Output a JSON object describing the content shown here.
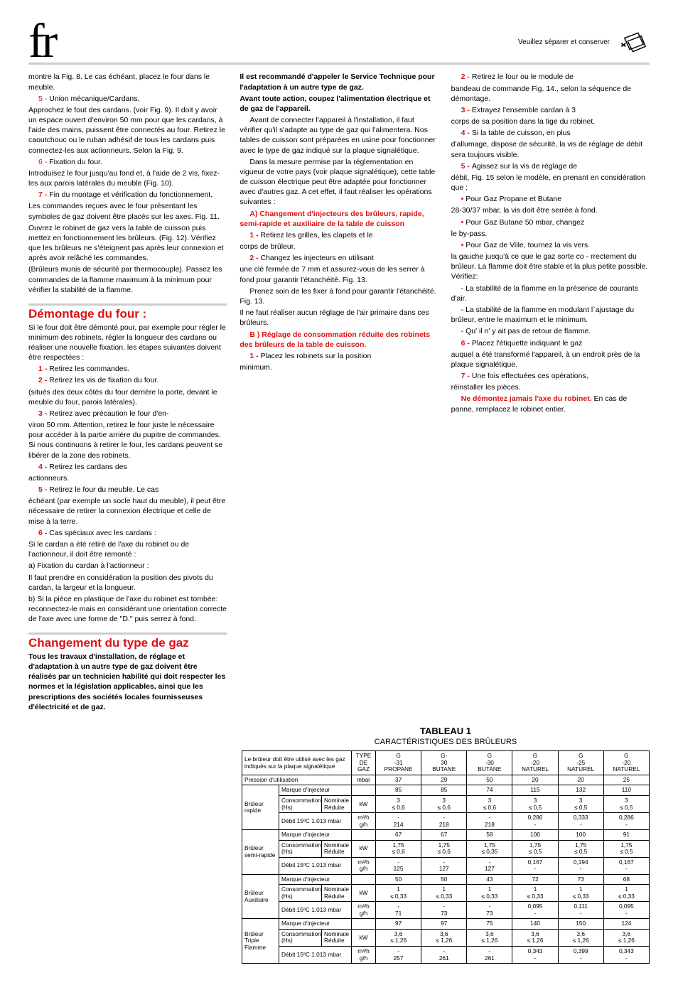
{
  "header": {
    "lang": "fr",
    "note": "Veuillez séparer et conserver"
  },
  "col1": {
    "p1": "montre la Fig. 8. Le cas échéant, placez le four dans le meuble.",
    "s5n": "5 - ",
    "s5": "Union mécanique/Cardans.",
    "p2": "Approchez le fout des cardans. (voir Fig. 9). Il doit y avoir un espace ouvert d'environ 50 mm pour que les cardans, à l'aide des mains, puissent être connectés au four. Retirez le caoutchouc ou le ruban adhésif de tous les cardans puis connectez-les aux actionneurs. Selon la Fig. 9.",
    "s6n": "6 - ",
    "s6": "Fixation du four.",
    "p3": "Introduisez le four jusqu'au fond et, à l'aide de 2 vis, fixez-les aux parois latérales du meuble (Fig. 10).",
    "s7n": "7 - ",
    "s7": "Fin du montage et vérification du fonctionnement.",
    "p4": "Les commandes reçues avec le four présentant les symboles de gaz doivent être placés sur les axes. Fig. 11.",
    "p5": "Ouvrez le robinet de gaz vers la table de cuisson puis mettez en fonctionnement les brûleurs. (Fig. 12). Vérifiez que les brûleurs ne s'éteignent pas après leur connexion et après avoir relâché les commandes.",
    "p6": "(Brûleurs munis de sécurité par thermocouple). Passez les commandes de la flamme maximum à la minimum pour vérifier la stabilité de la flamme.",
    "h_demontage": "Démontage du four :",
    "d_intro": "Si le four doit être démonté pour, par exemple pour régler le minimum des robinets, régler la longueur des cardans ou réaliser une nouvelle fixation, les étapes suivantes doivent être respectées :",
    "d1n": "1 - ",
    "d1": "Retirez les commandes.",
    "d2n": "2 - ",
    "d2": "Retirez les vis de fixation du four.",
    "d2b": "(situés des deux côtés du four derrière la porte, devant le meuble du four, parois latérales).",
    "d3n": "3 - ",
    "d3": "Retirez avec précaution le four d'en-",
    "d3b": "viron 50 mm. Attention, retirez le four juste le nécessaire pour accéder à la partie arrière du pupitre de commandes. Si nous continuons à retirer le four, les cardans peuvent se libérer de la zone des robinets.",
    "d4n": "4 - ",
    "d4": "Retirez les cardans des",
    "d4b": "actionneurs.",
    "d5n": "5 - ",
    "d5": "Retirez le four du meuble. Le cas",
    "d5b": "échéant (par exemple un socle haut du meuble), il peut être nécessaire de retirer la connexion électrique et celle de mise à la terre.",
    "d6n": "6 - ",
    "d6": "Cas spéciaux avec les cardans :",
    "d6a": "Si le cardan a été retiré de l'axe du robinet ou de l'actionneur, il doit être remonté :",
    "d6a1": "a) Fixation du cardan à l'actionneur :",
    "d6a1b": "Il faut prendre en considération la position des pivots du cardan, la largeur et la longueur.",
    "d6b": "b) Si la pièce en plastique de l'axe du robinet est tombée: reconnectez-le mais en considérant une orientation correcte de l'axe avec une forme de \"D.\" puis serrez à fond.",
    "h_changement": "Changement du type de gaz",
    "ch_intro": "Tous les travaux d'installation, de réglage et d'adaptation à un autre type de gaz doivent être réalisés par un technicien habilité qui doit respecter les normes et la législation applicables, ainsi que les prescriptions des sociétés locales fournisseuses d'électricité et de gaz."
  },
  "col2": {
    "rec1": "Il est recommandé d'appeler le Service Technique pour l'adaptation à un autre type de gaz.",
    "rec2": "Avant toute action, coupez l'alimentation électrique et de gaz de l'appareil.",
    "p1": "Avant de connecter l'appareil à l'installation, il faut vérifier qu'il s'adapte au type de gaz qui l'alimentera. Nos tables de cuisson sont préparées en usine pour fonctionner avec le type de gaz indiqué sur la plaque signalétique.",
    "p2": "Dans la mesure permise par la réglementation en vigueur de votre pays (voir plaque signalétique), cette table de cuisson électrique peut être adaptée pour fonctionner avec d'autres gaz. A cet effet, il faut réaliser les opérations suivantes :",
    "A": "A) Changement d'injecteurs des brûleurs, rapide, semi-rapide et auxiliaire de la table de cuisson",
    "a1n": "1 - ",
    "a1": "Retirez les grilles, les clapets et le",
    "a1b": "corps de brûleur.",
    "a2n": "2 - ",
    "a2": "Changez les injecteurs en utilisant",
    "a2b": "une clé fermée de 7 mm et assurez-vous de les serrer à fond pour garantir l'étanchéité. Fig. 13.",
    "a3": "Prenez soin de les fixer à fond pour garantir l'étanchéité. Fig. 13.",
    "a4": "Il ne faut réaliser aucun réglage de l'air primaire dans ces brûleurs.",
    "B": "B ) Réglage de consommation réduite des robinets des brûleurs de la table de cuisson.",
    "b1n": "1 - ",
    "b1": "Placez les robinets sur la position",
    "b1b": "minimum."
  },
  "col3": {
    "c2n": "2 - ",
    "c2": "Retirez le four ou le module de",
    "c2b": "bandeau de commande Fig. 14., selon la séquence de démontage.",
    "c3n": "3 - ",
    "c3": "Extrayez l'ensemble cardan à 3",
    "c3b": "corps de sa position dans la tige du robinet.",
    "c4n": "4 - ",
    "c4": "Si la table de cuisson, en plus",
    "c4b": "d'allumage, dispose de sécurité, la vis de réglage de débit sera toujours visible.",
    "c5n": "5 - ",
    "c5": "Agissez sur la vis de réglage de",
    "c5b": "débit, Fig. 15 selon le modèle, en prenant en considération que :",
    "bul1n": "• ",
    "bul1": "Pour Gaz Propane et Butane",
    "bul1b": "28-30/37 mbar, la vis doit être serrée à fond.",
    "bul2n": "• ",
    "bul2": "Pour Gaz Butane 50 mbar, changez",
    "bul2b": "le by-pass.",
    "bul3n": "• ",
    "bul3": "Pour Gaz de Ville, tournez la vis vers",
    "bul3b": "la gauche jusqu'à ce que le gaz sorte co - rrectement du brûleur. La flamme doit être stable et la plus petite possible. Vérifiez:",
    "chk1": "- La stabilité de la flamme en la présence de courants d'air.",
    "chk2": "- La stabilité de la flamme en modulant l`ajustage du brûleur, entre le maximum et le minimum.",
    "chk3": "- Qu' il n' y ait pas de retour de flamme.",
    "c6n": "6 - ",
    "c6": "Placez l'étiquette indiquant le gaz",
    "c6b": "auquel a été transformé l'appareil, à un endroit près de la plaque signalétique.",
    "c7n": "7 - ",
    "c7": "Une fois effectuées ces opérations,",
    "c7b": "réinstaller les pièces.",
    "warn": "Ne démontez jamais l'axe du robinet.",
    "warnb": " En cas de panne, remplacez le robinet entier."
  },
  "table": {
    "title": "TABLEAU 1",
    "subtitle": "CARACTÉRISTIQUES DES BRÛLEURS",
    "head_note": "Le brûleur doit être utilisé avec les gaz indiqués sur la plaque signalétique",
    "cols": [
      "TYPE DE GAZ",
      "G -31 PROPANE",
      "G- 30 BUTANE",
      "G -30 BUTANE",
      "G -20 NATUREL",
      "G -25 NATUREL",
      "G -20 NATUREL"
    ],
    "pression_label": "Pression d'utilisation",
    "pression_unit": "mbar",
    "pression": [
      "37",
      "29",
      "50",
      "20",
      "20",
      "25"
    ],
    "groups": [
      {
        "name": "Brûleur rapide",
        "marque": [
          "85",
          "85",
          "74",
          "115",
          "132",
          "110"
        ],
        "cons": [
          [
            "3",
            "≤ 0,6"
          ],
          [
            "3",
            "≤ 0,6"
          ],
          [
            "3",
            "≤ 0,6"
          ],
          [
            "3",
            "≤ 0,5"
          ],
          [
            "3",
            "≤ 0,5"
          ],
          [
            "3",
            "≤ 0,5"
          ]
        ],
        "debit": [
          [
            "-",
            "214"
          ],
          [
            "-",
            "218"
          ],
          [
            "-",
            "218"
          ],
          [
            "0,286",
            "-"
          ],
          [
            "0,333",
            "-"
          ],
          [
            "0,286",
            "-"
          ]
        ]
      },
      {
        "name": "Brûleur semi-rapide",
        "marque": [
          "67",
          "67",
          "58",
          "100",
          "100",
          "91"
        ],
        "cons": [
          [
            "1,75",
            "≤ 0,6"
          ],
          [
            "1,75",
            "≤ 0,6"
          ],
          [
            "1,75",
            "≤ 0,35"
          ],
          [
            "1,75",
            "≤ 0,5"
          ],
          [
            "1,75",
            "≤ 0,5"
          ],
          [
            "1,75",
            "≤ 0,5"
          ]
        ],
        "debit": [
          [
            "-",
            "125"
          ],
          [
            "-",
            "127"
          ],
          [
            "-",
            "127"
          ],
          [
            "0,167",
            "-"
          ],
          [
            "0,194",
            "-"
          ],
          [
            "0,167",
            "-"
          ]
        ]
      },
      {
        "name": "Brûleur Auxiliaire",
        "marque": [
          "50",
          "50",
          "43",
          "72",
          "73",
          "68"
        ],
        "cons": [
          [
            "1",
            "≤ 0,33"
          ],
          [
            "1",
            "≤ 0,33"
          ],
          [
            "1",
            "≤ 0,33"
          ],
          [
            "1",
            "≤ 0,33"
          ],
          [
            "1",
            "≤ 0,33"
          ],
          [
            "1",
            "≤ 0,33"
          ]
        ],
        "debit": [
          [
            "-",
            "71"
          ],
          [
            "-",
            "73"
          ],
          [
            "-",
            "73"
          ],
          [
            "0,095",
            "-"
          ],
          [
            "0,111",
            "-"
          ],
          [
            "0,095",
            "-"
          ]
        ]
      },
      {
        "name": "Brûleur Triple Flamme",
        "marque": [
          "97",
          "97",
          "75",
          "140",
          "150",
          "124"
        ],
        "cons": [
          [
            "3,6",
            "≤ 1,26"
          ],
          [
            "3,6",
            "≤ 1,26"
          ],
          [
            "3,6",
            "≤ 1,26"
          ],
          [
            "3,6",
            "≤ 1,26"
          ],
          [
            "3,6",
            "≤ 1,26"
          ],
          [
            "3,6",
            "≤ 1,26"
          ]
        ],
        "debit": [
          [
            "-",
            "257"
          ],
          [
            "-",
            "261"
          ],
          [
            "-",
            "261"
          ],
          [
            "0,343",
            "-"
          ],
          [
            "0,399",
            "-"
          ],
          [
            "0,343",
            "-"
          ]
        ]
      }
    ],
    "row_labels": {
      "marque": "Marque d'injecteur",
      "cons": "Consommation (Hs)",
      "cons_sub1": "Nominale",
      "cons_sub2": "Réduite",
      "cons_unit": "kW",
      "debit": "Débit 15ºC 1.013 mbar",
      "debit_unit1": "m³/h",
      "debit_unit2": "g/h"
    }
  }
}
